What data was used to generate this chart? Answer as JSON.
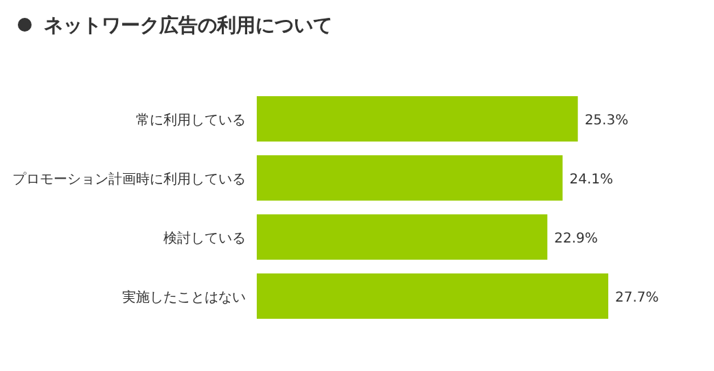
{
  "chart_data": {
    "type": "bar",
    "orientation": "horizontal",
    "title": "ネットワーク広告の利用について",
    "categories": [
      "常に利用している",
      "プロモーション計画時に利用している",
      "検討している",
      "実施したことはない"
    ],
    "values": [
      25.3,
      24.1,
      22.9,
      27.7
    ],
    "color": "#99cc00",
    "data_labels": true,
    "value_labels": [
      "25.3%",
      "24.1%",
      "22.9%",
      "27.7%"
    ]
  }
}
